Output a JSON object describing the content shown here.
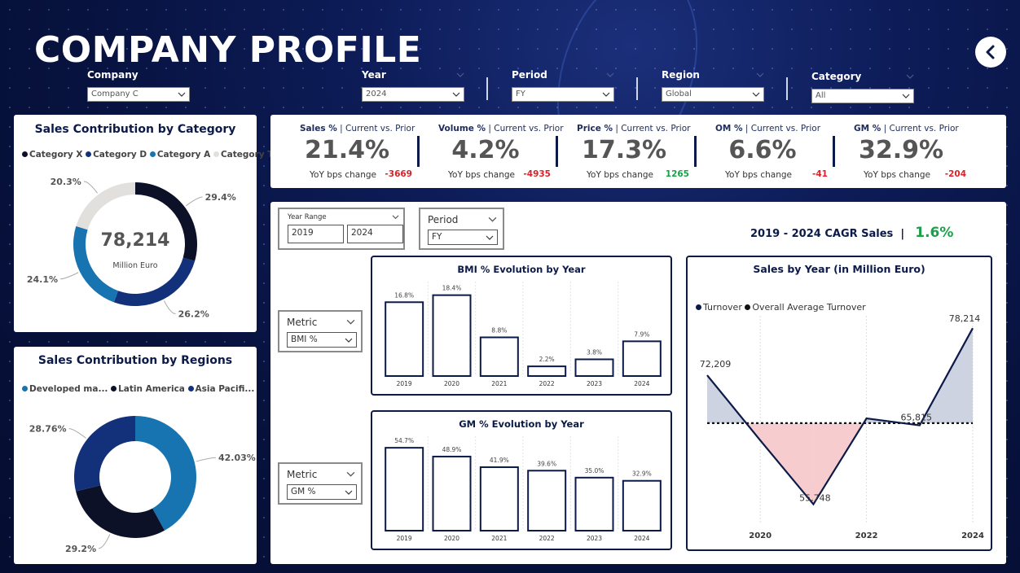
{
  "page": {
    "title": "COMPANY PROFILE"
  },
  "filters": {
    "company": {
      "label": "Company",
      "value": "Company C"
    },
    "year": {
      "label": "Year",
      "value": "2024"
    },
    "period": {
      "label": "Period",
      "value": "FY"
    },
    "region": {
      "label": "Region",
      "value": "Global"
    },
    "category": {
      "label": "Category",
      "value": "All"
    }
  },
  "colors": {
    "navy": "#0b1a48",
    "category_x": "#0d1127",
    "category_d": "#13317a",
    "category_a": "#1874b0",
    "category_t": "#e2e0dc",
    "positive": "#1aa049",
    "negative": "#d9222a",
    "above_avg_fill": "#c4cbdc",
    "below_avg_fill": "#f5c3c6"
  },
  "category_card": {
    "title": "Sales Contribution by Category",
    "legend": [
      "Category X",
      "Category D",
      "Category A",
      "Category T"
    ],
    "center_value": "78,214",
    "center_unit": "Million Euro",
    "slices": [
      {
        "name": "Category X",
        "value": 29.4,
        "label": "29.4%"
      },
      {
        "name": "Category D",
        "value": 26.2,
        "label": "26.2%"
      },
      {
        "name": "Category A",
        "value": 24.1,
        "label": "24.1%"
      },
      {
        "name": "Category T",
        "value": 20.3,
        "label": "20.3%"
      }
    ]
  },
  "region_card": {
    "title": "Sales Contribution by Regions",
    "legend": [
      "Developed ma...",
      "Latin America",
      "Asia Pacifi..."
    ],
    "slices": [
      {
        "name": "Developed markets",
        "value": 42.03,
        "label": "42.03%"
      },
      {
        "name": "Latin America",
        "value": 29.2,
        "label": "29.2%"
      },
      {
        "name": "Asia Pacific",
        "value": 28.76,
        "label": "28.76%"
      }
    ]
  },
  "kpis": [
    {
      "name": "Sales %",
      "suffix": " | Current vs. Prior",
      "value": "21.4%",
      "sub": "YoY bps change",
      "delta": "-3669",
      "positive": false
    },
    {
      "name": "Volume %",
      "suffix": " | Current vs. Prior",
      "value": "4.2%",
      "sub": "YoY bps change",
      "delta": "-4935",
      "positive": false
    },
    {
      "name": "Price %",
      "suffix": " | Current vs. Prior",
      "value": "17.3%",
      "sub": "YoY bps change",
      "delta": "1265",
      "positive": true
    },
    {
      "name": "OM %",
      "suffix": " | Current vs. Prior",
      "value": "6.6%",
      "sub": "YoY bps change",
      "delta": "-41",
      "positive": false
    },
    {
      "name": "GM %",
      "suffix": " | Current vs. Prior",
      "value": "32.9%",
      "sub": "YoY bps change",
      "delta": "-204",
      "positive": false
    }
  ],
  "main_panel": {
    "year_range": {
      "label": "Year Range",
      "from": "2019",
      "to": "2024"
    },
    "period": {
      "label": "Period",
      "value": "FY"
    },
    "cagr": {
      "label": "2019 - 2024 CAGR Sales",
      "sep": "|",
      "value": "1.6%"
    },
    "metric_slicer_1": {
      "label": "Metric",
      "value": "BMI %"
    },
    "metric_slicer_2": {
      "label": "Metric",
      "value": "GM %"
    }
  },
  "chart_data": [
    {
      "type": "bar",
      "title": "BMI % Evolution by Year",
      "categories": [
        "2019",
        "2020",
        "2021",
        "2022",
        "2023",
        "2024"
      ],
      "values": [
        16.8,
        18.4,
        8.8,
        2.2,
        3.8,
        7.9
      ],
      "labels": [
        "16.8%",
        "18.4%",
        "8.8%",
        "2.2%",
        "3.8%",
        "7.9%"
      ],
      "ylim": [
        0,
        20
      ]
    },
    {
      "type": "bar",
      "title": "GM % Evolution by Year",
      "categories": [
        "2019",
        "2020",
        "2021",
        "2022",
        "2023",
        "2024"
      ],
      "values": [
        54.7,
        48.9,
        41.9,
        39.6,
        35.0,
        32.9
      ],
      "labels": [
        "54.7%",
        "48.9%",
        "41.9%",
        "39.6%",
        "35.0%",
        "32.9%"
      ],
      "ylim": [
        0,
        58
      ]
    },
    {
      "type": "line",
      "title": "Sales by Year (in Million Euro)",
      "legend": [
        "Turnover",
        "Overall Average Turnover"
      ],
      "x": [
        2019,
        2020,
        2021,
        2022,
        2023,
        2024
      ],
      "x_tick_labels": [
        "2020",
        "2022",
        "2024"
      ],
      "series": [
        {
          "name": "Turnover",
          "values": [
            72209,
            63900,
            55748,
            66700,
            65815,
            78214
          ]
        },
        {
          "name": "Overall Average Turnover",
          "values": [
            66100,
            66100,
            66100,
            66100,
            66100,
            66100
          ]
        }
      ],
      "data_labels": [
        {
          "index": 0,
          "text": "72,209"
        },
        {
          "index": 2,
          "text": "55,748"
        },
        {
          "index": 4,
          "text": "65,815"
        },
        {
          "index": 5,
          "text": "78,214"
        }
      ],
      "ylim": [
        53000,
        80000
      ]
    }
  ]
}
